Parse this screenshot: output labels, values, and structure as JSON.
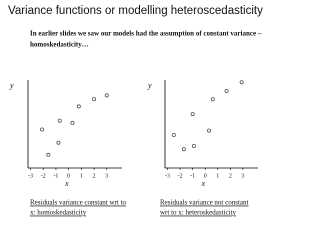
{
  "slide": {
    "title": "Variance functions or modelling heteroscedasticity",
    "text": [
      "In earlier slides we saw our models had the assumption of constant variance –",
      "homoskedasticity…"
    ]
  },
  "chart_data": [
    {
      "type": "scatter",
      "x_label": "x",
      "y_label": "y",
      "x": [
        3.0,
        2.0,
        0.8,
        0.3,
        -0.7,
        -0.8,
        -2.1,
        -1.6
      ],
      "values": [
        2.6,
        2.25,
        1.6,
        0.1,
        0.3,
        -1.7,
        -0.5,
        -2.8
      ],
      "xlim": [
        -3.2,
        4.2
      ],
      "ylim": [
        -4,
        4
      ],
      "xticks": [
        -3,
        -2,
        -1,
        0,
        1,
        2,
        3
      ],
      "color": "#555555",
      "caption": [
        "Residuals variance constant wrt to",
        "x: homoskedasticity"
      ]
    },
    {
      "type": "scatter",
      "x_label": "x",
      "y_label": "y",
      "x": [
        2.9,
        1.7,
        0.6,
        -1.0,
        0.3,
        -2.5,
        -0.9,
        -1.7
      ],
      "values": [
        3.8,
        3.0,
        2.25,
        0.9,
        -0.6,
        -1.0,
        -2.0,
        -2.3
      ],
      "xlim": [
        -3.2,
        4.2
      ],
      "ylim": [
        -4,
        4
      ],
      "xticks": [
        -3,
        -2,
        -1,
        0,
        1,
        2,
        3
      ],
      "color": "#555555",
      "caption": [
        "Residuals variance not constant",
        "wrt to x: heteroskedasticity"
      ]
    }
  ]
}
